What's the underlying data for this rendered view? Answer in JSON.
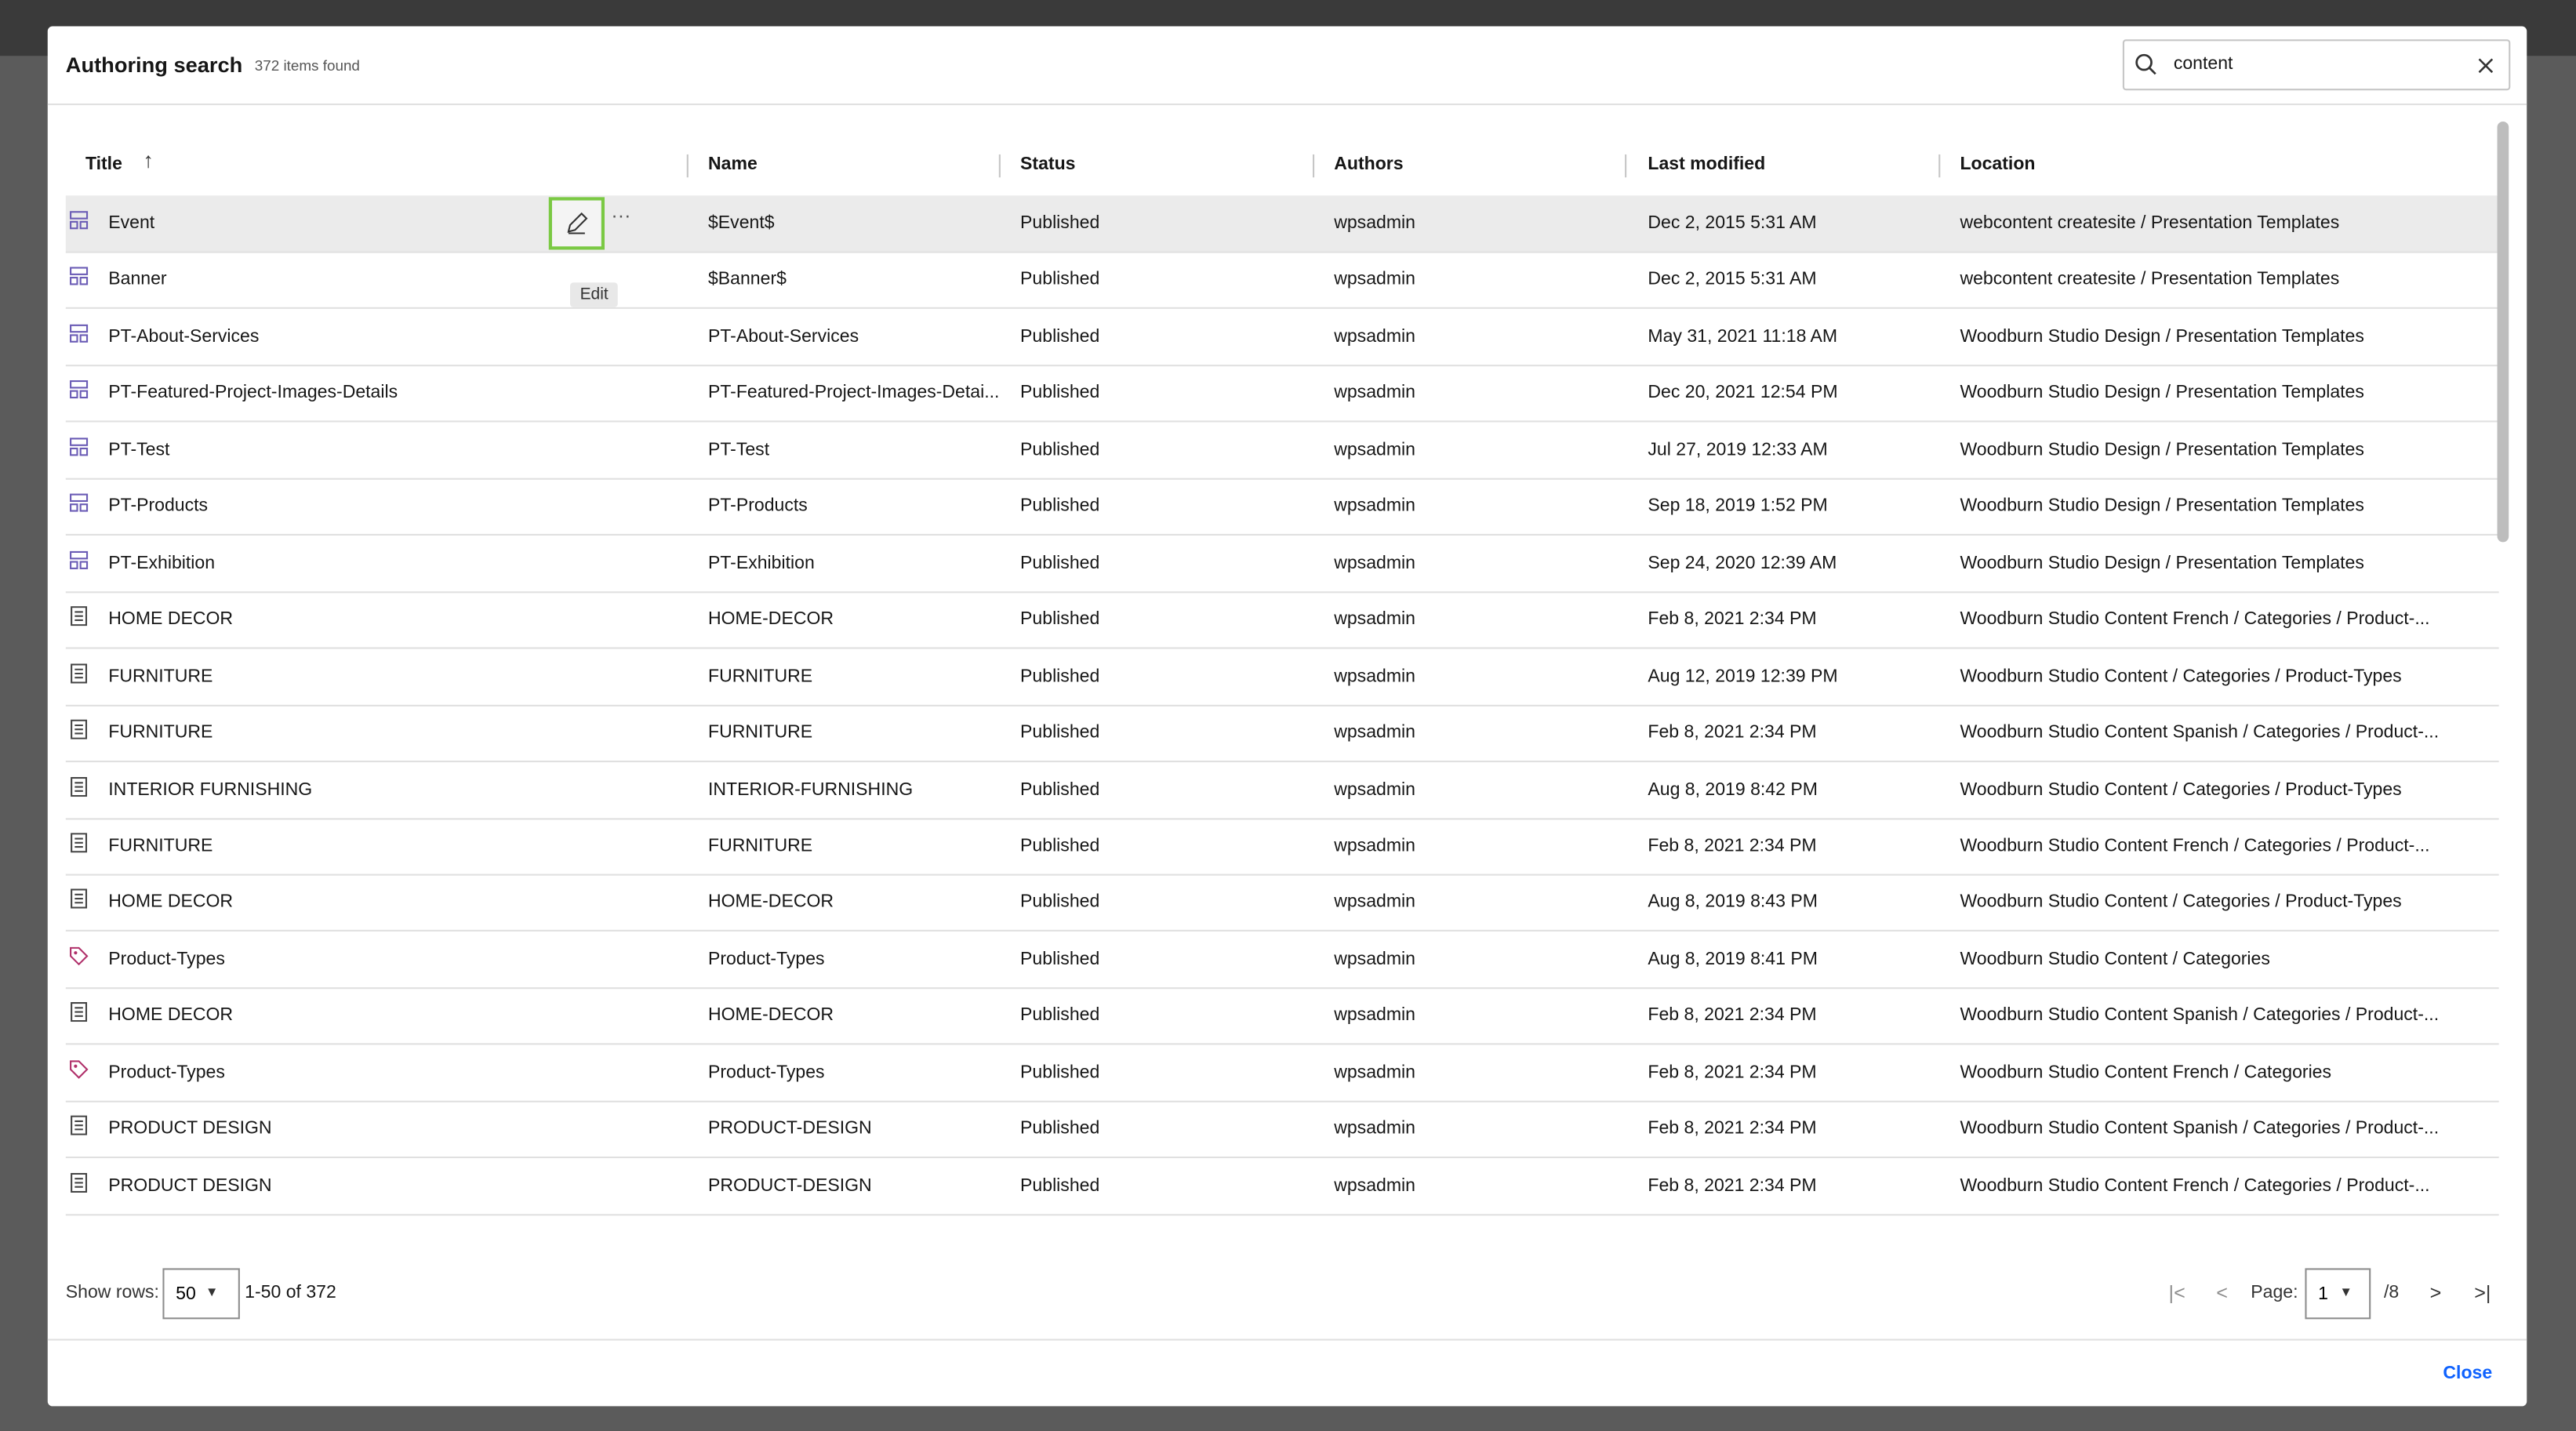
{
  "dialog": {
    "title": "Authoring search",
    "count": "372 items found",
    "search": "content",
    "close": "Close"
  },
  "table": {
    "columns": [
      "Title",
      "Name",
      "Status",
      "Authors",
      "Last modified",
      "Location"
    ],
    "tooltip": "Edit",
    "rows": [
      {
        "icon": "template",
        "cells": [
          "Event",
          "$Event$",
          "Published",
          "wpsadmin",
          "Dec 2, 2015 5:31 AM",
          "webcontent createsite / Presentation Templates"
        ]
      },
      {
        "icon": "template",
        "cells": [
          "Banner",
          "$Banner$",
          "Published",
          "wpsadmin",
          "Dec 2, 2015 5:31 AM",
          "webcontent createsite / Presentation Templates"
        ]
      },
      {
        "icon": "template",
        "cells": [
          "PT-About-Services",
          "PT-About-Services",
          "Published",
          "wpsadmin",
          "May 31, 2021 11:18 AM",
          "Woodburn Studio Design / Presentation Templates"
        ]
      },
      {
        "icon": "template",
        "cells": [
          "PT-Featured-Project-Images-Details",
          "PT-Featured-Project-Images-Detai...",
          "Published",
          "wpsadmin",
          "Dec 20, 2021 12:54 PM",
          "Woodburn Studio Design / Presentation Templates"
        ]
      },
      {
        "icon": "template",
        "cells": [
          "PT-Test",
          "PT-Test",
          "Published",
          "wpsadmin",
          "Jul 27, 2019 12:33 AM",
          "Woodburn Studio Design / Presentation Templates"
        ]
      },
      {
        "icon": "template",
        "cells": [
          "PT-Products",
          "PT-Products",
          "Published",
          "wpsadmin",
          "Sep 18, 2019 1:52 PM",
          "Woodburn Studio Design / Presentation Templates"
        ]
      },
      {
        "icon": "template",
        "cells": [
          "PT-Exhibition",
          "PT-Exhibition",
          "Published",
          "wpsadmin",
          "Sep 24, 2020 12:39 AM",
          "Woodburn Studio Design / Presentation Templates"
        ]
      },
      {
        "icon": "content",
        "cells": [
          "HOME DECOR",
          "HOME-DECOR",
          "Published",
          "wpsadmin",
          "Feb 8, 2021 2:34 PM",
          "Woodburn Studio Content French / Categories / Product-..."
        ]
      },
      {
        "icon": "content",
        "cells": [
          "FURNITURE",
          "FURNITURE",
          "Published",
          "wpsadmin",
          "Aug 12, 2019 12:39 PM",
          "Woodburn Studio Content / Categories / Product-Types"
        ]
      },
      {
        "icon": "content",
        "cells": [
          "FURNITURE",
          "FURNITURE",
          "Published",
          "wpsadmin",
          "Feb 8, 2021 2:34 PM",
          "Woodburn Studio Content Spanish / Categories / Product-..."
        ]
      },
      {
        "icon": "content",
        "cells": [
          "INTERIOR FURNISHING",
          "INTERIOR-FURNISHING",
          "Published",
          "wpsadmin",
          "Aug 8, 2019 8:42 PM",
          "Woodburn Studio Content / Categories / Product-Types"
        ]
      },
      {
        "icon": "content",
        "cells": [
          "FURNITURE",
          "FURNITURE",
          "Published",
          "wpsadmin",
          "Feb 8, 2021 2:34 PM",
          "Woodburn Studio Content French / Categories / Product-..."
        ]
      },
      {
        "icon": "content",
        "cells": [
          "HOME DECOR",
          "HOME-DECOR",
          "Published",
          "wpsadmin",
          "Aug 8, 2019 8:43 PM",
          "Woodburn Studio Content / Categories / Product-Types"
        ]
      },
      {
        "icon": "category",
        "cells": [
          "Product-Types",
          "Product-Types",
          "Published",
          "wpsadmin",
          "Aug 8, 2019 8:41 PM",
          "Woodburn Studio Content / Categories"
        ]
      },
      {
        "icon": "content",
        "cells": [
          "HOME DECOR",
          "HOME-DECOR",
          "Published",
          "wpsadmin",
          "Feb 8, 2021 2:34 PM",
          "Woodburn Studio Content Spanish / Categories / Product-..."
        ]
      },
      {
        "icon": "category",
        "cells": [
          "Product-Types",
          "Product-Types",
          "Published",
          "wpsadmin",
          "Feb 8, 2021 2:34 PM",
          "Woodburn Studio Content French / Categories"
        ]
      },
      {
        "icon": "content",
        "cells": [
          "PRODUCT DESIGN",
          "PRODUCT-DESIGN",
          "Published",
          "wpsadmin",
          "Feb 8, 2021 2:34 PM",
          "Woodburn Studio Content Spanish / Categories / Product-..."
        ]
      },
      {
        "icon": "content",
        "cells": [
          "PRODUCT DESIGN",
          "PRODUCT-DESIGN",
          "Published",
          "wpsadmin",
          "Feb 8, 2021 2:34 PM",
          "Woodburn Studio Content French / Categories / Product-..."
        ]
      }
    ]
  },
  "footer": {
    "rows_label": "Show rows:",
    "rows_value": "50",
    "range": "1-50 of 372",
    "page_label": "Page:",
    "page_value": "1",
    "page_total": "/8"
  }
}
